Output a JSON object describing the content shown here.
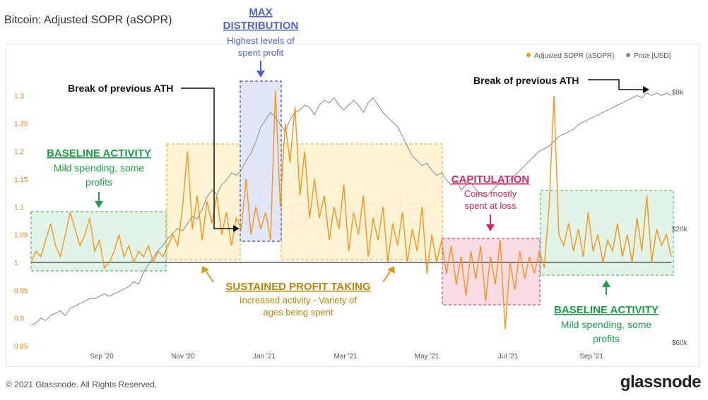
{
  "page": {
    "title": "Bitcoin: Adjusted SOPR (aSOPR)",
    "copyright": "© 2021 Glassnode. All Rights Reserved.",
    "brand": "glassnode",
    "watermark": "glassnode"
  },
  "colors": {
    "sopr": "#F7931A",
    "price": "#888888",
    "baseline_fill": "#DDF2E4",
    "baseline_stroke": "#3DAA5E",
    "baseline_text": "#1E9E47",
    "profit_fill": "#FFF1D0",
    "profit_stroke": "#E3A72F",
    "profit_text": "#B8860B",
    "maxdist_fill": "#DCE3F7",
    "maxdist_stroke": "#3B4FB8",
    "maxdist_text": "#4F64C7",
    "capit_fill": "#FAD6E0",
    "capit_stroke": "#E0245E",
    "capit_text": "#E0245E"
  },
  "chart_data": {
    "type": "line",
    "title": "Bitcoin: Adjusted SOPR (aSOPR)",
    "x_ticks": [
      "Sep '20",
      "Nov '20",
      "Jan '21",
      "Mar '21",
      "May '21",
      "Jul '21",
      "Sep '21"
    ],
    "y_left": {
      "lim": [
        0.85,
        1.32
      ],
      "ticks": [
        "0.85",
        "0.9",
        "0.95",
        "1",
        "1.05",
        "1.1",
        "1.15",
        "1.2",
        "1.25",
        "1.3"
      ]
    },
    "y_right": {
      "scale": "log",
      "ticks": [
        "$8k",
        "$20k",
        "$60k"
      ]
    },
    "legend": [
      "Adjusted SOPR (aSOPR)",
      "Price [USD]"
    ],
    "series": [
      {
        "name": "Adjusted SOPR (aSOPR)",
        "axis": "left",
        "values": [
          1.0,
          1.02,
          1.01,
          1.04,
          1.07,
          1.03,
          1.01,
          1.05,
          1.09,
          1.06,
          1.03,
          1.05,
          1.08,
          1.02,
          1.04,
          0.99,
          1.0,
          1.02,
          1.05,
          1.01,
          1.03,
          1.0,
          1.02,
          1.01,
          1.03,
          1.0,
          1.02,
          1.01,
          1.03,
          1.05,
          1.03,
          1.1,
          1.2,
          1.06,
          1.12,
          1.04,
          1.11,
          1.07,
          1.12,
          1.05,
          1.09,
          1.03,
          1.08,
          1.06,
          1.15,
          1.05,
          1.1,
          1.06,
          1.09,
          1.04,
          1.31,
          1.1,
          1.25,
          1.18,
          1.28,
          1.12,
          1.2,
          1.08,
          1.15,
          1.08,
          1.12,
          1.04,
          1.1,
          1.06,
          1.14,
          1.02,
          1.09,
          1.05,
          1.12,
          1.01,
          1.08,
          1.04,
          1.1,
          1.0,
          1.07,
          1.03,
          1.09,
          1.0,
          1.06,
          1.02,
          1.1,
          0.98,
          1.05,
          1.0,
          1.04,
          0.98,
          1.03,
          0.96,
          1.01,
          0.94,
          1.02,
          0.97,
          1.03,
          0.93,
          1.01,
          0.96,
          1.04,
          0.88,
          1.0,
          0.95,
          1.02,
          0.97,
          1.01,
          0.98,
          1.02,
          0.99,
          1.1,
          1.3,
          1.05,
          1.03,
          1.07,
          1.02,
          1.06,
          1.01,
          1.09,
          1.02,
          1.05,
          1.0,
          1.04,
          1.02,
          1.07,
          1.01,
          1.05,
          1.0,
          1.08,
          1.02,
          1.12,
          1.0,
          1.06,
          1.03,
          1.05,
          1.01
        ]
      },
      {
        "name": "Price [USD]",
        "axis": "right",
        "values": [
          0.02,
          0.03,
          0.05,
          0.04,
          0.06,
          0.07,
          0.08,
          0.06,
          0.09,
          0.1,
          0.11,
          0.12,
          0.13,
          0.13,
          0.14,
          0.15,
          0.14,
          0.15,
          0.16,
          0.17,
          0.18,
          0.2,
          0.19,
          0.24,
          0.27,
          0.3,
          0.33,
          0.35,
          0.38,
          0.4,
          0.42,
          0.41,
          0.44,
          0.47,
          0.46,
          0.5,
          0.55,
          0.58,
          0.56,
          0.6,
          0.62,
          0.65,
          0.64,
          0.66,
          0.7,
          0.73,
          0.78,
          0.84,
          0.87,
          0.9,
          0.88,
          0.85,
          0.82,
          0.87,
          0.9,
          0.91,
          0.93,
          0.92,
          0.89,
          0.93,
          0.95,
          0.94,
          0.96,
          0.93,
          0.91,
          0.93,
          0.95,
          0.93,
          0.9,
          0.94,
          0.96,
          0.93,
          0.9,
          0.88,
          0.86,
          0.84,
          0.8,
          0.76,
          0.72,
          0.7,
          0.68,
          0.69,
          0.66,
          0.64,
          0.65,
          0.62,
          0.6,
          0.62,
          0.58,
          0.6,
          0.61,
          0.58,
          0.56,
          0.55,
          0.57,
          0.59,
          0.61,
          0.6,
          0.62,
          0.64,
          0.66,
          0.68,
          0.7,
          0.72,
          0.74,
          0.75,
          0.76,
          0.78,
          0.8,
          0.81,
          0.82,
          0.83,
          0.85,
          0.86,
          0.87,
          0.88,
          0.89,
          0.9,
          0.91,
          0.92,
          0.93,
          0.94,
          0.95,
          0.96,
          0.97,
          0.96,
          0.98,
          0.97,
          0.98,
          0.97,
          0.98,
          0.97
        ]
      }
    ],
    "baseline_value": 1.0,
    "grid": false,
    "legend_placement": "top-right"
  },
  "annotations": {
    "maxdist": {
      "title1": "MAX",
      "title2": "DISTRIBUTION",
      "sub1": "Highest levels of",
      "sub2": "spent profit"
    },
    "ath_left": "Break of previous ATH",
    "ath_right": "Break of previous ATH",
    "baseline_left": {
      "title": "BASELINE ACTIVITY",
      "sub1": "Mild spending, some",
      "sub2": "profits"
    },
    "baseline_right": {
      "title": "BASELINE ACTIVITY",
      "sub1": "Mild spending, some",
      "sub2": "profits"
    },
    "profit": {
      "title": "SUSTAINED PROFIT TAKING",
      "sub1": "Increased activity - Variety of",
      "sub2": "ages being spent"
    },
    "capit": {
      "title": "CAPITULATION",
      "sub1": "Coins mostly",
      "sub2": "spent at loss"
    }
  }
}
